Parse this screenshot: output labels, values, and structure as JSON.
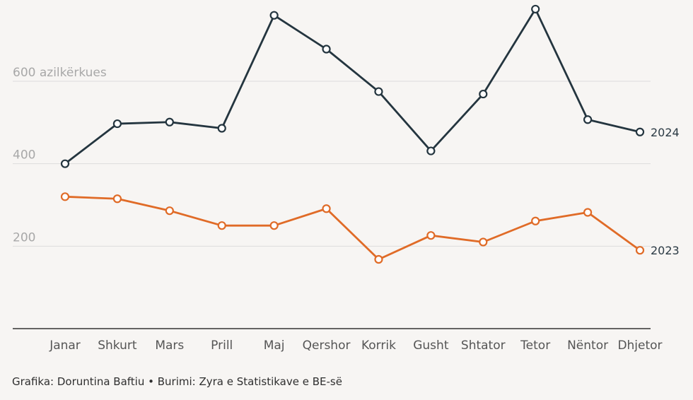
{
  "chart_data": {
    "type": "line",
    "categories": [
      "Janar",
      "Shkurt",
      "Mars",
      "Prill",
      "Maj",
      "Qershor",
      "Korrik",
      "Gusht",
      "Shtator",
      "Tetor",
      "Nëntor",
      "Dhjetor"
    ],
    "series": [
      {
        "name": "2024",
        "color": "#24353f",
        "values": [
          400,
          497,
          501,
          486,
          760,
          678,
          575,
          431,
          569,
          775,
          507,
          477
        ]
      },
      {
        "name": "2023",
        "color": "#e06b27",
        "values": [
          320,
          315,
          286,
          250,
          250,
          291,
          168,
          226,
          210,
          261,
          282,
          190
        ]
      }
    ],
    "y_ticks": [
      {
        "value": 600,
        "label": "600 azilkërkues"
      },
      {
        "value": 400,
        "label": "400"
      },
      {
        "value": 200,
        "label": "200"
      }
    ],
    "ylim": [
      0,
      800
    ],
    "grid": true,
    "legend": "end-of-line labels"
  },
  "footer": "Grafika: Doruntina Baftiu • Burimi: Zyra e Statistikave e BE-së"
}
